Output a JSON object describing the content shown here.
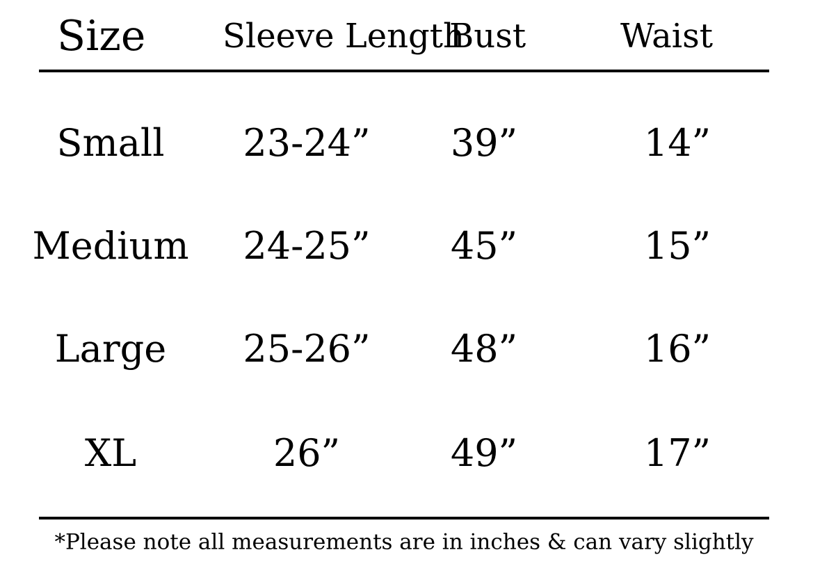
{
  "headers": {
    "size": "Size",
    "sleeve_length": "Sleeve Length",
    "bust": "Bust",
    "waist": "Waist"
  },
  "rows": [
    {
      "size": "Small",
      "sleeve_length": "23-24”",
      "bust": "39”",
      "waist": "14”"
    },
    {
      "size": "Medium",
      "sleeve_length": "24-25”",
      "bust": "45”",
      "waist": "15”"
    },
    {
      "size": "Large",
      "sleeve_length": "25-26”",
      "bust": "48”",
      "waist": "16”"
    },
    {
      "size": "XL",
      "sleeve_length": "26”",
      "bust": "49”",
      "waist": "17”"
    }
  ],
  "footnote": "*Please note all measurements are in inches & can vary slightly",
  "colors": {
    "text": "#000000",
    "background": "#ffffff"
  }
}
